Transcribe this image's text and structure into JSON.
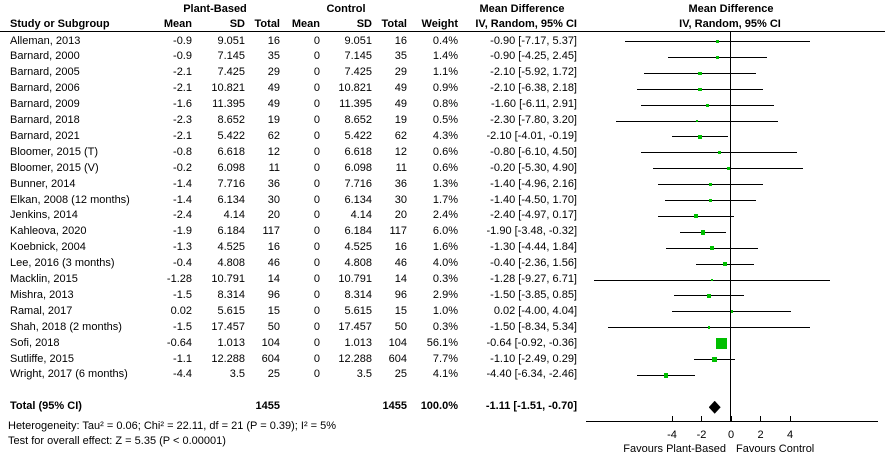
{
  "header": {
    "group1": "Plant-Based",
    "group2": "Control",
    "study_col": "Study or Subgroup",
    "mean": "Mean",
    "sd": "SD",
    "total": "Total",
    "weight": "Weight",
    "md_title": "Mean Difference",
    "md_subtitle": "IV, Random, 95% CI"
  },
  "totals": {
    "label": "Total (95% CI)",
    "n1": "1455",
    "n2": "1455",
    "weight": "100.0%",
    "ci_text": "-1.11 [-1.51, -0.70]",
    "md": -1.11,
    "lo": -1.51,
    "hi": -0.7
  },
  "footer": {
    "heterogeneity": "Heterogeneity: Tau² = 0.06; Chi² = 22.11, df = 21 (P = 0.39); I² = 5%",
    "overall_effect": "Test for overall effect: Z = 5.35 (P < 0.00001)",
    "favours_left": "Favours Plant-Based",
    "favours_right": "Favours Control"
  },
  "colors": {
    "marker_green": "#00bf00",
    "diamond_black": "#000000",
    "line_black": "#000000",
    "background": "#ffffff",
    "text": "#000000"
  },
  "chart_data": {
    "type": "scatter",
    "subtype": "forest-plot",
    "title": "Mean Difference",
    "model": "IV, Random, 95% CI",
    "xlabel_left": "Favours Plant-Based",
    "xlabel_right": "Favours Control",
    "axis": {
      "ticks": [
        -4,
        -2,
        0,
        2,
        4
      ],
      "min": -10,
      "max": 10,
      "zero_line": 0
    },
    "studies": [
      {
        "name": "Alleman, 2013",
        "mean1": "-0.9",
        "sd1": "9.051",
        "n1": "16",
        "mean2": "0",
        "sd2": "9.051",
        "n2": "16",
        "weight": "0.4%",
        "w": 0.4,
        "ci_text": "-0.90 [-7.17, 5.37]",
        "md": -0.9,
        "lo": -7.17,
        "hi": 5.37
      },
      {
        "name": "Barnard, 2000",
        "mean1": "-0.9",
        "sd1": "7.145",
        "n1": "35",
        "mean2": "0",
        "sd2": "7.145",
        "n2": "35",
        "weight": "1.4%",
        "w": 1.4,
        "ci_text": "-0.90 [-4.25, 2.45]",
        "md": -0.9,
        "lo": -4.25,
        "hi": 2.45
      },
      {
        "name": "Barnard, 2005",
        "mean1": "-2.1",
        "sd1": "7.425",
        "n1": "29",
        "mean2": "0",
        "sd2": "7.425",
        "n2": "29",
        "weight": "1.1%",
        "w": 1.1,
        "ci_text": "-2.10 [-5.92, 1.72]",
        "md": -2.1,
        "lo": -5.92,
        "hi": 1.72
      },
      {
        "name": "Barnard, 2006",
        "mean1": "-2.1",
        "sd1": "10.821",
        "n1": "49",
        "mean2": "0",
        "sd2": "10.821",
        "n2": "49",
        "weight": "0.9%",
        "w": 0.9,
        "ci_text": "-2.10 [-6.38, 2.18]",
        "md": -2.1,
        "lo": -6.38,
        "hi": 2.18
      },
      {
        "name": "Barnard, 2009",
        "mean1": "-1.6",
        "sd1": "11.395",
        "n1": "49",
        "mean2": "0",
        "sd2": "11.395",
        "n2": "49",
        "weight": "0.8%",
        "w": 0.8,
        "ci_text": "-1.60 [-6.11, 2.91]",
        "md": -1.6,
        "lo": -6.11,
        "hi": 2.91
      },
      {
        "name": "Barnard, 2018",
        "mean1": "-2.3",
        "sd1": "8.652",
        "n1": "19",
        "mean2": "0",
        "sd2": "8.652",
        "n2": "19",
        "weight": "0.5%",
        "w": 0.5,
        "ci_text": "-2.30 [-7.80, 3.20]",
        "md": -2.3,
        "lo": -7.8,
        "hi": 3.2
      },
      {
        "name": "Barnard, 2021",
        "mean1": "-2.1",
        "sd1": "5.422",
        "n1": "62",
        "mean2": "0",
        "sd2": "5.422",
        "n2": "62",
        "weight": "4.3%",
        "w": 4.3,
        "ci_text": "-2.10 [-4.01, -0.19]",
        "md": -2.1,
        "lo": -4.01,
        "hi": -0.19
      },
      {
        "name": "Bloomer, 2015 (T)",
        "mean1": "-0.8",
        "sd1": "6.618",
        "n1": "12",
        "mean2": "0",
        "sd2": "6.618",
        "n2": "12",
        "weight": "0.6%",
        "w": 0.6,
        "ci_text": "-0.80 [-6.10, 4.50]",
        "md": -0.8,
        "lo": -6.1,
        "hi": 4.5
      },
      {
        "name": "Bloomer, 2015 (V)",
        "mean1": "-0.2",
        "sd1": "6.098",
        "n1": "11",
        "mean2": "0",
        "sd2": "6.098",
        "n2": "11",
        "weight": "0.6%",
        "w": 0.6,
        "ci_text": "-0.20 [-5.30, 4.90]",
        "md": -0.2,
        "lo": -5.3,
        "hi": 4.9
      },
      {
        "name": "Bunner, 2014",
        "mean1": "-1.4",
        "sd1": "7.716",
        "n1": "36",
        "mean2": "0",
        "sd2": "7.716",
        "n2": "36",
        "weight": "1.3%",
        "w": 1.3,
        "ci_text": "-1.40 [-4.96, 2.16]",
        "md": -1.4,
        "lo": -4.96,
        "hi": 2.16
      },
      {
        "name": "Elkan, 2008 (12 months)",
        "mean1": "-1.4",
        "sd1": "6.134",
        "n1": "30",
        "mean2": "0",
        "sd2": "6.134",
        "n2": "30",
        "weight": "1.7%",
        "w": 1.7,
        "ci_text": "-1.40 [-4.50, 1.70]",
        "md": -1.4,
        "lo": -4.5,
        "hi": 1.7
      },
      {
        "name": "Jenkins, 2014",
        "mean1": "-2.4",
        "sd1": "4.14",
        "n1": "20",
        "mean2": "0",
        "sd2": "4.14",
        "n2": "20",
        "weight": "2.4%",
        "w": 2.4,
        "ci_text": "-2.40 [-4.97, 0.17]",
        "md": -2.4,
        "lo": -4.97,
        "hi": 0.17
      },
      {
        "name": "Kahleova, 2020",
        "mean1": "-1.9",
        "sd1": "6.184",
        "n1": "117",
        "mean2": "0",
        "sd2": "6.184",
        "n2": "117",
        "weight": "6.0%",
        "w": 6.0,
        "ci_text": "-1.90 [-3.48, -0.32]",
        "md": -1.9,
        "lo": -3.48,
        "hi": -0.32
      },
      {
        "name": "Koebnick, 2004",
        "mean1": "-1.3",
        "sd1": "4.525",
        "n1": "16",
        "mean2": "0",
        "sd2": "4.525",
        "n2": "16",
        "weight": "1.6%",
        "w": 1.6,
        "ci_text": "-1.30 [-4.44, 1.84]",
        "md": -1.3,
        "lo": -4.44,
        "hi": 1.84
      },
      {
        "name": "Lee, 2016 (3 months)",
        "mean1": "-0.4",
        "sd1": "4.808",
        "n1": "46",
        "mean2": "0",
        "sd2": "4.808",
        "n2": "46",
        "weight": "4.0%",
        "w": 4.0,
        "ci_text": "-0.40 [-2.36, 1.56]",
        "md": -0.4,
        "lo": -2.36,
        "hi": 1.56
      },
      {
        "name": "Macklin, 2015",
        "mean1": "-1.28",
        "sd1": "10.791",
        "n1": "14",
        "mean2": "0",
        "sd2": "10.791",
        "n2": "14",
        "weight": "0.3%",
        "w": 0.3,
        "ci_text": "-1.28 [-9.27, 6.71]",
        "md": -1.28,
        "lo": -9.27,
        "hi": 6.71
      },
      {
        "name": "Mishra, 2013",
        "mean1": "-1.5",
        "sd1": "8.314",
        "n1": "96",
        "mean2": "0",
        "sd2": "8.314",
        "n2": "96",
        "weight": "2.9%",
        "w": 2.9,
        "ci_text": "-1.50 [-3.85, 0.85]",
        "md": -1.5,
        "lo": -3.85,
        "hi": 0.85
      },
      {
        "name": "Ramal, 2017",
        "mean1": "0.02",
        "sd1": "5.615",
        "n1": "15",
        "mean2": "0",
        "sd2": "5.615",
        "n2": "15",
        "weight": "1.0%",
        "w": 1.0,
        "ci_text": "0.02 [-4.00, 4.04]",
        "md": 0.02,
        "lo": -4.0,
        "hi": 4.04
      },
      {
        "name": "Shah, 2018 (2 months)",
        "mean1": "-1.5",
        "sd1": "17.457",
        "n1": "50",
        "mean2": "0",
        "sd2": "17.457",
        "n2": "50",
        "weight": "0.3%",
        "w": 0.3,
        "ci_text": "-1.50 [-8.34, 5.34]",
        "md": -1.5,
        "lo": -8.34,
        "hi": 5.34
      },
      {
        "name": "Sofi, 2018",
        "mean1": "-0.64",
        "sd1": "1.013",
        "n1": "104",
        "mean2": "0",
        "sd2": "1.013",
        "n2": "104",
        "weight": "56.1%",
        "w": 56.1,
        "ci_text": "-0.64 [-0.92, -0.36]",
        "md": -0.64,
        "lo": -0.92,
        "hi": -0.36
      },
      {
        "name": "Sutliffe, 2015",
        "mean1": "-1.1",
        "sd1": "12.288",
        "n1": "604",
        "mean2": "0",
        "sd2": "12.288",
        "n2": "604",
        "weight": "7.7%",
        "w": 7.7,
        "ci_text": "-1.10 [-2.49, 0.29]",
        "md": -1.1,
        "lo": -2.49,
        "hi": 0.29
      },
      {
        "name": "Wright, 2017 (6 months)",
        "mean1": "-4.4",
        "sd1": "3.5",
        "n1": "25",
        "mean2": "0",
        "sd2": "3.5",
        "n2": "25",
        "weight": "4.1%",
        "w": 4.1,
        "ci_text": "-4.40 [-6.34, -2.46]",
        "md": -4.4,
        "lo": -6.34,
        "hi": -2.46
      }
    ],
    "total": {
      "label": "Total (95% CI)",
      "n1": "1455",
      "n2": "1455",
      "weight": "100.0%",
      "ci_text": "-1.11 [-1.51, -0.70]",
      "md": -1.11,
      "lo": -1.51,
      "hi": -0.7
    }
  }
}
